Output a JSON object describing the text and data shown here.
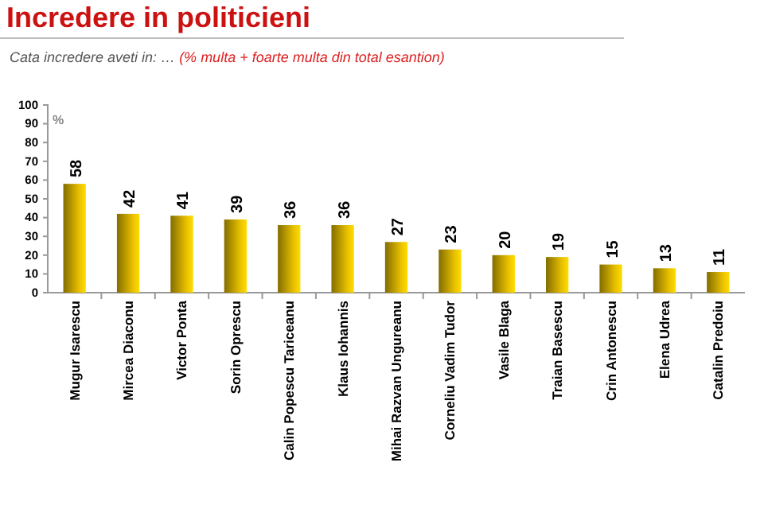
{
  "chart_data": {
    "type": "bar",
    "title": "Incredere in politicieni",
    "subtitle": "Cata incredere aveti in: …",
    "annotations": [
      "(% multa + foarte multa din  total esantion)"
    ],
    "ylabel": "%",
    "categories": [
      "Mugur Isarescu",
      "Mircea Diaconu",
      "Victor Ponta",
      "Sorin Oprescu",
      "Calin Popescu Tariceanu",
      "Klaus Iohannis",
      "Mihai Razvan Ungureanu",
      "Corneliu Vadim Tudor",
      "Vasile Blaga",
      "Traian Basescu",
      "Crin Antonescu",
      "Elena Udrea",
      "Catalin Predoiu"
    ],
    "values": [
      58,
      42,
      41,
      39,
      36,
      36,
      27,
      23,
      20,
      19,
      15,
      13,
      11
    ],
    "color": "#e8c000",
    "ylim": [
      0,
      100
    ],
    "yticks": [
      0,
      10,
      20,
      30,
      40,
      50,
      60,
      70,
      80,
      90,
      100
    ],
    "data_labels": true,
    "grid": false
  }
}
